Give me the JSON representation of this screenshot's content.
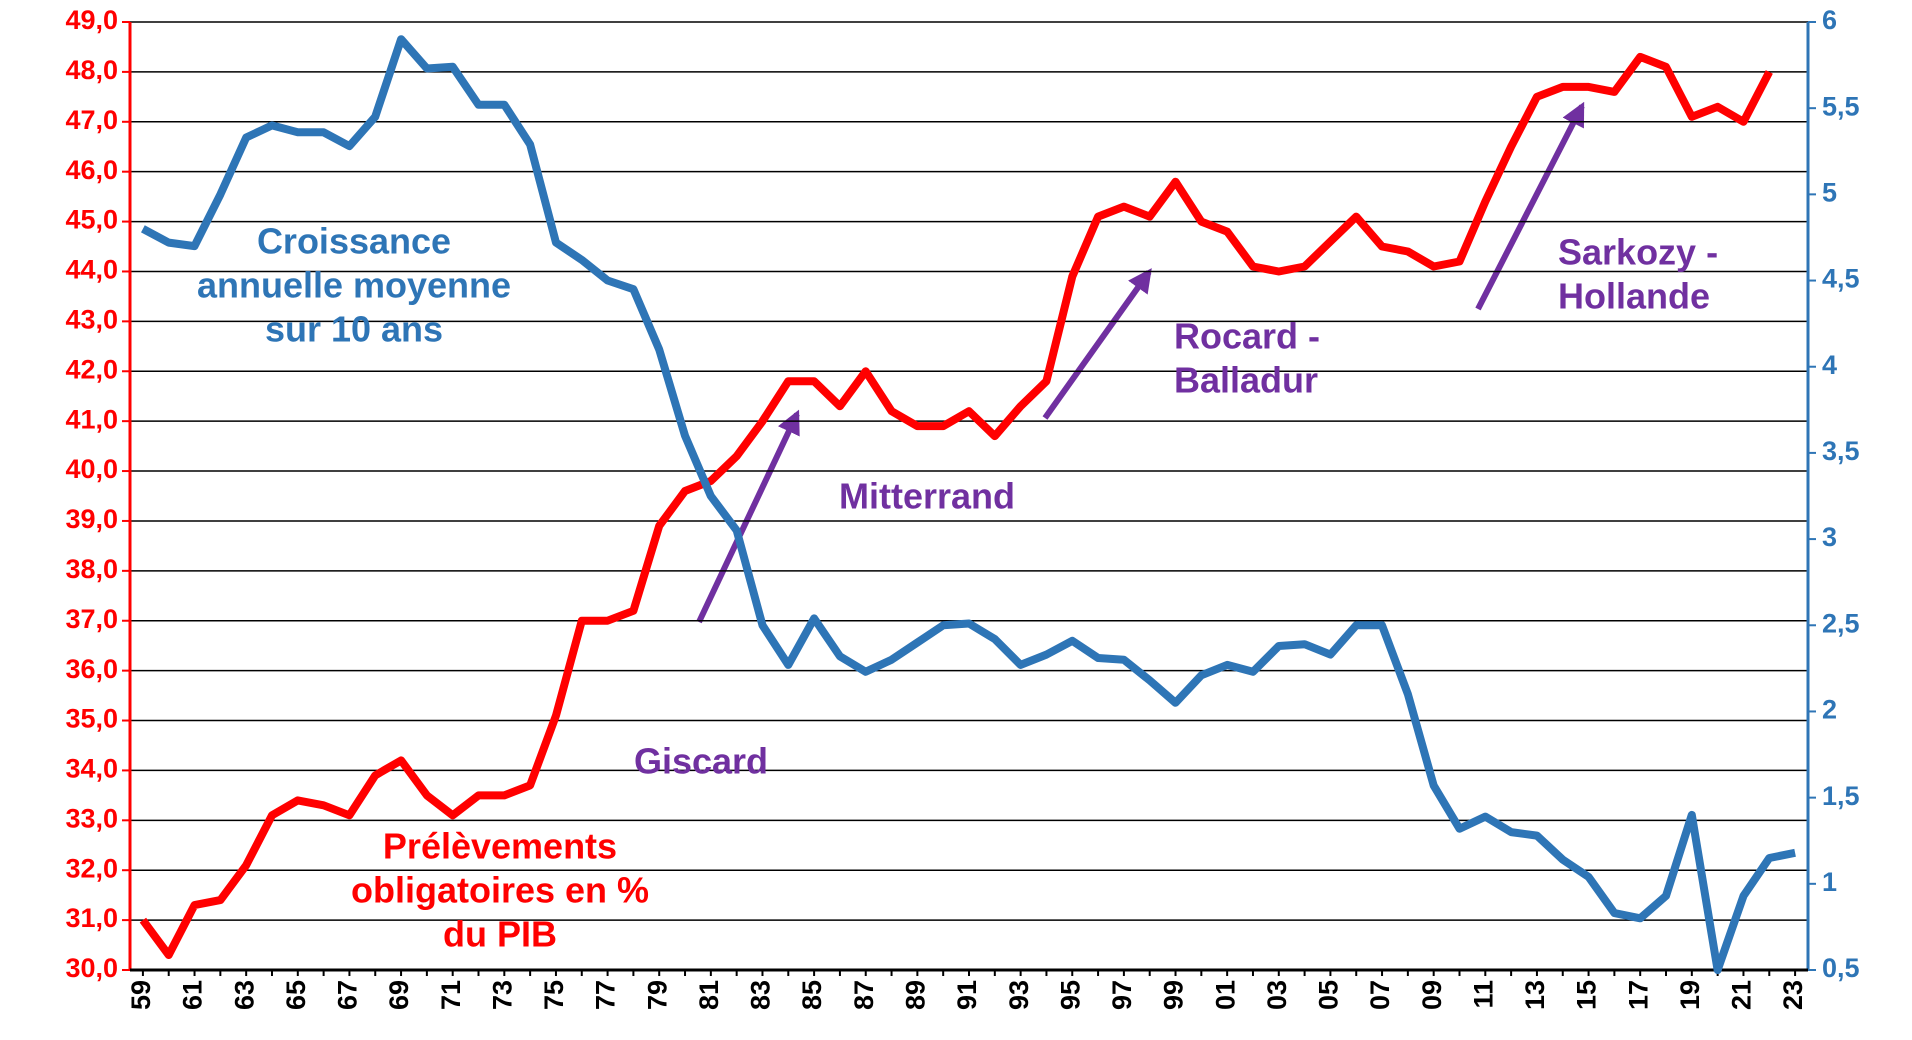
{
  "chart_data": {
    "type": "line",
    "categories": [
      "59",
      null,
      "61",
      null,
      "63",
      null,
      "65",
      null,
      "67",
      null,
      "69",
      null,
      "71",
      null,
      "73",
      null,
      "75",
      null,
      "77",
      null,
      "79",
      null,
      "81",
      null,
      "83",
      null,
      "85",
      null,
      "87",
      null,
      "89",
      null,
      "91",
      null,
      "93",
      null,
      "95",
      null,
      "97",
      null,
      "99",
      null,
      "01",
      null,
      "03",
      null,
      "05",
      null,
      "07",
      null,
      "09",
      null,
      "11",
      null,
      "13",
      null,
      "15",
      null,
      "17",
      null,
      "19",
      null,
      "21",
      null,
      "23"
    ],
    "series": [
      {
        "name": "Prélèvements obligatoires en % du PIB",
        "color": "#ff0000",
        "axis": "y",
        "values": [
          31.0,
          30.3,
          31.3,
          31.4,
          32.1,
          33.1,
          33.4,
          33.3,
          33.1,
          33.9,
          34.2,
          33.5,
          33.1,
          33.5,
          33.5,
          33.7,
          35.1,
          37.0,
          37.0,
          37.2,
          38.9,
          39.6,
          39.8,
          40.3,
          41.0,
          41.8,
          41.8,
          41.3,
          42.0,
          41.2,
          40.9,
          40.9,
          41.2,
          40.7,
          41.3,
          41.8,
          43.9,
          45.1,
          45.3,
          45.1,
          45.8,
          45.0,
          44.8,
          44.1,
          44.0,
          44.1,
          44.6,
          45.1,
          44.5,
          44.4,
          44.1,
          44.2,
          45.4,
          46.5,
          47.5,
          47.7,
          47.7,
          47.6,
          48.3,
          48.1,
          47.1,
          47.3,
          47.0,
          48.0,
          null
        ]
      },
      {
        "name": "Croissance annuelle moyenne sur 10 ans",
        "color": "#2e75b6",
        "axis": "y2",
        "values": [
          4.8,
          4.72,
          4.7,
          5.0,
          5.33,
          5.4,
          5.36,
          5.36,
          5.28,
          5.45,
          5.9,
          5.73,
          5.74,
          5.52,
          5.52,
          5.29,
          4.72,
          4.62,
          4.5,
          4.45,
          4.1,
          3.6,
          3.25,
          3.05,
          2.5,
          2.27,
          2.54,
          2.32,
          2.23,
          2.3,
          2.4,
          2.5,
          2.51,
          2.42,
          2.27,
          2.33,
          2.41,
          2.31,
          2.3,
          2.18,
          2.05,
          2.21,
          2.27,
          2.23,
          2.38,
          2.39,
          2.33,
          2.5,
          2.5,
          2.1,
          1.57,
          1.32,
          1.39,
          1.3,
          1.28,
          1.14,
          1.04,
          0.83,
          0.8,
          0.93,
          1.4,
          0.5,
          0.93,
          1.15,
          1.18
        ]
      }
    ],
    "ylim": [
      30,
      49
    ],
    "yticks": [
      {
        "value": 30,
        "label": "30,0"
      },
      {
        "value": 31,
        "label": "31,0"
      },
      {
        "value": 32,
        "label": "32,0"
      },
      {
        "value": 33,
        "label": "33,0"
      },
      {
        "value": 34,
        "label": "34,0"
      },
      {
        "value": 35,
        "label": "35,0"
      },
      {
        "value": 36,
        "label": "36,0"
      },
      {
        "value": 37,
        "label": "37,0"
      },
      {
        "value": 38,
        "label": "38,0"
      },
      {
        "value": 39,
        "label": "39,0"
      },
      {
        "value": 40,
        "label": "40,0"
      },
      {
        "value": 41,
        "label": "41,0"
      },
      {
        "value": 42,
        "label": "42,0"
      },
      {
        "value": 43,
        "label": "43,0"
      },
      {
        "value": 44,
        "label": "44,0"
      },
      {
        "value": 45,
        "label": "45,0"
      },
      {
        "value": 46,
        "label": "46,0"
      },
      {
        "value": 47,
        "label": "47,0"
      },
      {
        "value": 48,
        "label": "48,0"
      },
      {
        "value": 49,
        "label": "49,0"
      }
    ],
    "y2lim": [
      0.5,
      6
    ],
    "y2ticks": [
      {
        "value": 0.5,
        "label": "0,5"
      },
      1,
      {
        "value": 1.5,
        "label": "1,5"
      },
      2,
      {
        "value": 2.5,
        "label": "2,5"
      },
      3,
      {
        "value": 3.5,
        "label": "3,5"
      },
      4,
      {
        "value": 4.5,
        "label": "4,5"
      },
      5,
      {
        "value": 5.5,
        "label": "5,5"
      },
      6
    ],
    "grid": true,
    "annotations": [
      {
        "lines": [
          "Croissance",
          "annuelle moyenne",
          "sur 10 ans"
        ],
        "color": "#2e75b6"
      },
      {
        "lines": [
          "Prélèvements",
          "obligatoires en %",
          "du PIB"
        ],
        "color": "#ff0000"
      },
      {
        "lines": [
          "Giscard"
        ],
        "color": "#7030a0"
      },
      {
        "lines": [
          "Mitterrand"
        ],
        "color": "#7030a0"
      },
      {
        "lines": [
          "Rocard -",
          "Balladur"
        ],
        "color": "#7030a0"
      },
      {
        "lines": [
          "Sarkozy -",
          "Hollande"
        ],
        "color": "#7030a0"
      }
    ]
  }
}
